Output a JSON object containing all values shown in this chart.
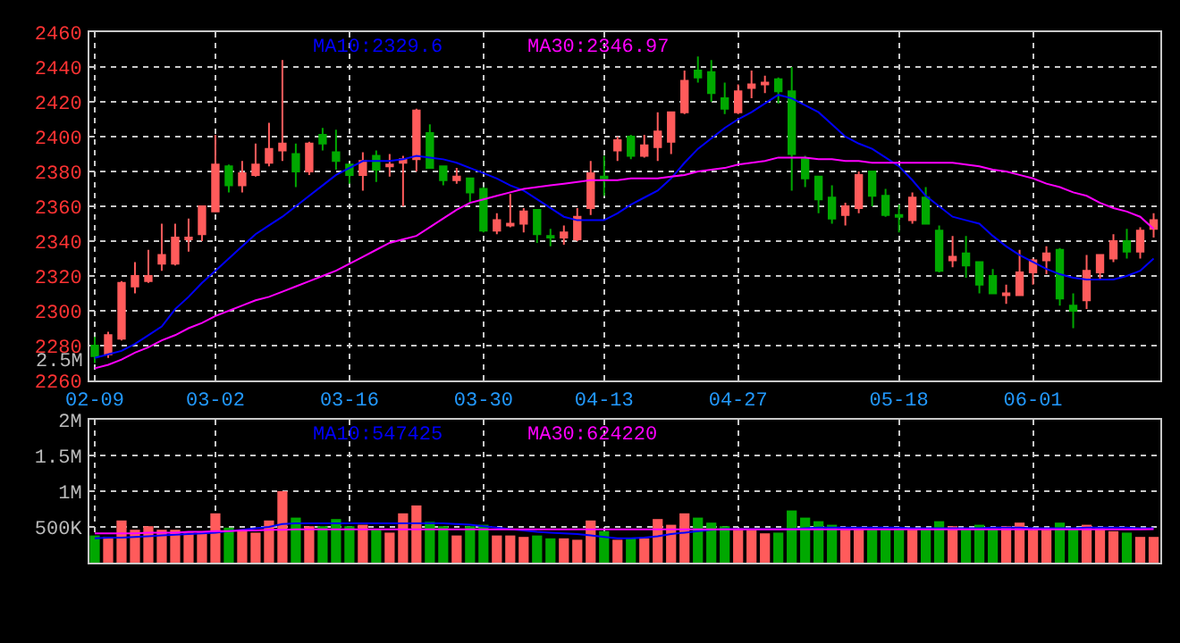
{
  "chart_data": [
    {
      "type": "candlestick",
      "categories": [
        "02-09",
        null,
        null,
        null,
        null,
        null,
        null,
        null,
        null,
        "03-02",
        null,
        null,
        null,
        null,
        null,
        null,
        null,
        null,
        null,
        "03-16",
        null,
        null,
        null,
        null,
        null,
        null,
        null,
        null,
        null,
        "03-30",
        null,
        null,
        null,
        null,
        null,
        null,
        null,
        null,
        "04-13",
        null,
        null,
        null,
        null,
        null,
        null,
        null,
        null,
        null,
        "04-27",
        null,
        null,
        null,
        null,
        null,
        null,
        null,
        null,
        null,
        null,
        null,
        "05-18",
        null,
        null,
        null,
        null,
        null,
        null,
        null,
        null,
        null,
        "06-01",
        null,
        null,
        null,
        null,
        null,
        null,
        null,
        null,
        null
      ],
      "ohlc": [
        [
          2280,
          2285,
          2270,
          2274
        ],
        [
          2275,
          2288,
          2273,
          2286
        ],
        [
          2284,
          2317,
          2283,
          2316
        ],
        [
          2314,
          2328,
          2310,
          2320
        ],
        [
          2317,
          2335,
          2316,
          2320
        ],
        [
          2327,
          2350,
          2323,
          2332
        ],
        [
          2327,
          2350,
          2326,
          2342
        ],
        [
          2341,
          2353,
          2334,
          2342
        ],
        [
          2344,
          2360,
          2340,
          2360
        ],
        [
          2357,
          2401,
          2357,
          2384
        ],
        [
          2383,
          2384,
          2368,
          2372
        ],
        [
          2372,
          2386,
          2368,
          2379
        ],
        [
          2378,
          2396,
          2377,
          2384
        ],
        [
          2385,
          2408,
          2383,
          2393
        ],
        [
          2392,
          2444,
          2386,
          2396
        ],
        [
          2390,
          2396,
          2371,
          2380
        ],
        [
          2380,
          2397,
          2378,
          2396
        ],
        [
          2401,
          2405,
          2392,
          2396
        ],
        [
          2391,
          2404,
          2381,
          2386
        ],
        [
          2384,
          2384,
          2373,
          2378
        ],
        [
          2378,
          2391,
          2369,
          2386
        ],
        [
          2389,
          2392,
          2374,
          2381
        ],
        [
          2383,
          2390,
          2377,
          2384
        ],
        [
          2385,
          2389,
          2360,
          2387
        ],
        [
          2387,
          2416,
          2380,
          2415
        ],
        [
          2402,
          2407,
          2382,
          2382
        ],
        [
          2383,
          2383,
          2372,
          2375
        ],
        [
          2375,
          2382,
          2373,
          2377
        ],
        [
          2376,
          2376,
          2362,
          2368
        ],
        [
          2370,
          2371,
          2345,
          2346
        ],
        [
          2346,
          2356,
          2344,
          2352
        ],
        [
          2349,
          2367,
          2348,
          2350
        ],
        [
          2350,
          2359,
          2345,
          2357
        ],
        [
          2358,
          2358,
          2339,
          2344
        ],
        [
          2343,
          2347,
          2337,
          2342
        ],
        [
          2342,
          2349,
          2338,
          2345
        ],
        [
          2341,
          2359,
          2340,
          2354
        ],
        [
          2359,
          2386,
          2355,
          2379
        ],
        [
          2377,
          2389,
          2366,
          2376
        ],
        [
          2392,
          2400,
          2386,
          2398
        ],
        [
          2400,
          2401,
          2387,
          2389
        ],
        [
          2389,
          2401,
          2388,
          2395
        ],
        [
          2394,
          2414,
          2386,
          2403
        ],
        [
          2397,
          2414,
          2390,
          2414
        ],
        [
          2414,
          2438,
          2413,
          2432
        ],
        [
          2438,
          2446,
          2431,
          2434
        ],
        [
          2437,
          2444,
          2420,
          2425
        ],
        [
          2422,
          2431,
          2413,
          2416
        ],
        [
          2414,
          2430,
          2413,
          2426
        ],
        [
          2428,
          2438,
          2422,
          2430
        ],
        [
          2430,
          2435,
          2425,
          2431
        ],
        [
          2433,
          2434,
          2419,
          2426
        ],
        [
          2426,
          2440,
          2369,
          2390
        ],
        [
          2387,
          2389,
          2371,
          2376
        ],
        [
          2377,
          2377,
          2356,
          2364
        ],
        [
          2365,
          2372,
          2350,
          2353
        ],
        [
          2355,
          2362,
          2349,
          2360
        ],
        [
          2359,
          2380,
          2356,
          2378
        ],
        [
          2380,
          2380,
          2360,
          2366
        ],
        [
          2366,
          2370,
          2354,
          2355
        ],
        [
          2355,
          2361,
          2345,
          2354
        ],
        [
          2352,
          2368,
          2350,
          2365
        ],
        [
          2365,
          2371,
          2350,
          2350
        ],
        [
          2346,
          2349,
          2322,
          2323
        ],
        [
          2329,
          2343,
          2325,
          2331
        ],
        [
          2333,
          2343,
          2319,
          2326
        ],
        [
          2328,
          2328,
          2310,
          2315
        ],
        [
          2320,
          2324,
          2310,
          2310
        ],
        [
          2309,
          2315,
          2304,
          2310
        ],
        [
          2309,
          2335,
          2309,
          2322
        ],
        [
          2322,
          2330,
          2315,
          2329
        ],
        [
          2329,
          2337,
          2321,
          2333
        ],
        [
          2335,
          2336,
          2303,
          2307
        ],
        [
          2303,
          2310,
          2290,
          2300
        ],
        [
          2306,
          2332,
          2301,
          2323
        ],
        [
          2322,
          2332,
          2318,
          2332
        ],
        [
          2330,
          2344,
          2328,
          2340
        ],
        [
          2340,
          2347,
          2330,
          2334
        ],
        [
          2334,
          2348,
          2330,
          2346
        ],
        [
          2347,
          2356,
          2342,
          2352
        ]
      ],
      "colors": [
        "#00a800",
        "#ff5b5b",
        "#ff5b5b",
        "#ff5b5b",
        "#ff5b5b",
        "#ff5b5b",
        "#ff5b5b",
        "#ff5b5b",
        "#ff5b5b",
        "#ff5b5b",
        "#00a800",
        "#ff5b5b",
        "#ff5b5b",
        "#ff5b5b",
        "#ff5b5b",
        "#00a800",
        "#ff5b5b",
        "#00a800",
        "#00a800",
        "#00a800",
        "#ff5b5b",
        "#00a800",
        "#ff5b5b",
        "#ff5b5b",
        "#ff5b5b",
        "#00a800",
        "#00a800",
        "#ff5b5b",
        "#00a800",
        "#00a800",
        "#ff5b5b",
        "#ff5b5b",
        "#ff5b5b",
        "#00a800",
        "#00a800",
        "#ff5b5b",
        "#ff5b5b",
        "#ff5b5b",
        "#00a800",
        "#ff5b5b",
        "#00a800",
        "#ff5b5b",
        "#ff5b5b",
        "#ff5b5b",
        "#ff5b5b",
        "#00a800",
        "#00a800",
        "#00a800",
        "#ff5b5b",
        "#ff5b5b",
        "#ff5b5b",
        "#00a800",
        "#00a800",
        "#00a800",
        "#00a800",
        "#00a800",
        "#ff5b5b",
        "#ff5b5b",
        "#00a800",
        "#00a800",
        "#00a800",
        "#ff5b5b",
        "#00a800",
        "#00a800",
        "#ff5b5b",
        "#00a800",
        "#00a800",
        "#00a800",
        "#ff5b5b",
        "#ff5b5b",
        "#ff5b5b",
        "#ff5b5b",
        "#00a800",
        "#00a800",
        "#ff5b5b",
        "#ff5b5b",
        "#ff5b5b",
        "#00a800",
        "#ff5b5b",
        "#ff5b5b"
      ],
      "series": [
        {
          "name": "MA10:2329.6",
          "type": "line",
          "color": "#0000ff",
          "values": [
            2273,
            2275,
            2277,
            2281,
            2286,
            2291,
            2301,
            2308,
            2316,
            2323,
            2330,
            2337,
            2344,
            2349,
            2354,
            2360,
            2366,
            2372,
            2378,
            2382,
            2386,
            2386,
            2386,
            2387,
            2389,
            2388,
            2387,
            2385,
            2382,
            2379,
            2376,
            2372,
            2369,
            2364,
            2359,
            2354,
            2352,
            2352,
            2352,
            2356,
            2361,
            2365,
            2369,
            2376,
            2385,
            2393,
            2399,
            2405,
            2410,
            2414,
            2419,
            2424,
            2422,
            2418,
            2414,
            2407,
            2400,
            2396,
            2393,
            2388,
            2383,
            2375,
            2366,
            2360,
            2354,
            2352,
            2350,
            2343,
            2337,
            2332,
            2328,
            2324,
            2321,
            2319,
            2318,
            2318,
            2318,
            2320,
            2323,
            2330
          ]
        },
        {
          "name": "MA30:2346.97",
          "type": "line",
          "color": "#ff00ff",
          "values": [
            2267,
            2269,
            2272,
            2276,
            2279,
            2283,
            2286,
            2290,
            2293,
            2297,
            2300,
            2303,
            2306,
            2308,
            2311,
            2314,
            2317,
            2320,
            2323,
            2327,
            2331,
            2335,
            2339,
            2341,
            2343,
            2348,
            2353,
            2358,
            2362,
            2364,
            2366,
            2368,
            2370,
            2371,
            2372,
            2373,
            2374,
            2375,
            2375,
            2375,
            2376,
            2376,
            2376,
            2377,
            2378,
            2380,
            2381,
            2382,
            2384,
            2385,
            2386,
            2388,
            2388,
            2388,
            2387,
            2387,
            2386,
            2386,
            2385,
            2385,
            2385,
            2385,
            2385,
            2385,
            2385,
            2384,
            2383,
            2381,
            2380,
            2378,
            2376,
            2373,
            2371,
            2368,
            2366,
            2362,
            2359,
            2357,
            2354,
            2347
          ]
        }
      ],
      "ylim": [
        2260,
        2460
      ],
      "yticks": [
        2260,
        2280,
        2300,
        2320,
        2340,
        2360,
        2380,
        2400,
        2420,
        2440,
        2460
      ],
      "grid": true
    },
    {
      "type": "bar",
      "categories": [
        null,
        null,
        null,
        null,
        null,
        null,
        null,
        null,
        null,
        null,
        null,
        null,
        null,
        null,
        null,
        null,
        null,
        null,
        null,
        null,
        null,
        null,
        null,
        null,
        null,
        null,
        null,
        null,
        null,
        null,
        null,
        null,
        null,
        null,
        null,
        null,
        null,
        null,
        null,
        null,
        null,
        null,
        null,
        null,
        null,
        null,
        null,
        null,
        null,
        null,
        null,
        null,
        null,
        null,
        null,
        null,
        null,
        null,
        null,
        null,
        null,
        null,
        null,
        null,
        null,
        null,
        null,
        null,
        null,
        null,
        null,
        null,
        null,
        null,
        null,
        null,
        null,
        null,
        null,
        null
      ],
      "values": [
        380000,
        360000,
        590000,
        460000,
        510000,
        460000,
        460000,
        420000,
        420000,
        690000,
        490000,
        460000,
        420000,
        590000,
        1000000,
        630000,
        510000,
        510000,
        610000,
        510000,
        530000,
        460000,
        420000,
        690000,
        800000,
        570000,
        510000,
        380000,
        510000,
        530000,
        380000,
        380000,
        360000,
        380000,
        340000,
        340000,
        320000,
        590000,
        440000,
        320000,
        340000,
        340000,
        610000,
        530000,
        690000,
        630000,
        560000,
        510000,
        480000,
        460000,
        410000,
        420000,
        730000,
        630000,
        580000,
        530000,
        460000,
        480000,
        460000,
        460000,
        480000,
        460000,
        460000,
        580000,
        510000,
        460000,
        530000,
        480000,
        510000,
        560000,
        460000,
        460000,
        560000,
        480000,
        530000,
        480000,
        440000,
        420000,
        360000,
        360000
      ],
      "colors": [
        "#00a800",
        "#ff5b5b",
        "#ff5b5b",
        "#ff5b5b",
        "#ff5b5b",
        "#ff5b5b",
        "#ff5b5b",
        "#ff5b5b",
        "#ff5b5b",
        "#ff5b5b",
        "#00a800",
        "#ff5b5b",
        "#ff5b5b",
        "#ff5b5b",
        "#ff5b5b",
        "#00a800",
        "#ff5b5b",
        "#00a800",
        "#00a800",
        "#00a800",
        "#ff5b5b",
        "#00a800",
        "#ff5b5b",
        "#ff5b5b",
        "#ff5b5b",
        "#00a800",
        "#00a800",
        "#ff5b5b",
        "#00a800",
        "#00a800",
        "#ff5b5b",
        "#ff5b5b",
        "#ff5b5b",
        "#00a800",
        "#00a800",
        "#ff5b5b",
        "#ff5b5b",
        "#ff5b5b",
        "#00a800",
        "#ff5b5b",
        "#00a800",
        "#ff5b5b",
        "#ff5b5b",
        "#ff5b5b",
        "#ff5b5b",
        "#00a800",
        "#00a800",
        "#00a800",
        "#ff5b5b",
        "#ff5b5b",
        "#ff5b5b",
        "#00a800",
        "#00a800",
        "#00a800",
        "#00a800",
        "#00a800",
        "#ff5b5b",
        "#ff5b5b",
        "#00a800",
        "#00a800",
        "#00a800",
        "#ff5b5b",
        "#00a800",
        "#00a800",
        "#ff5b5b",
        "#00a800",
        "#00a800",
        "#00a800",
        "#ff5b5b",
        "#ff5b5b",
        "#ff5b5b",
        "#ff5b5b",
        "#00a800",
        "#00a800",
        "#ff5b5b",
        "#ff5b5b",
        "#ff5b5b",
        "#00a800",
        "#ff5b5b",
        "#ff5b5b"
      ],
      "series": [
        {
          "name": "MA10:547425",
          "type": "line",
          "color": "#0000ff",
          "values": [
            340000,
            350000,
            350000,
            360000,
            370000,
            380000,
            390000,
            400000,
            410000,
            420000,
            440000,
            460000,
            480000,
            500000,
            540000,
            550000,
            550000,
            550000,
            550000,
            550000,
            550000,
            550000,
            550000,
            550000,
            550000,
            550000,
            550000,
            540000,
            530000,
            510000,
            490000,
            470000,
            450000,
            430000,
            420000,
            410000,
            400000,
            380000,
            360000,
            340000,
            340000,
            350000,
            370000,
            400000,
            420000,
            440000,
            460000,
            470000,
            470000,
            470000,
            470000,
            470000,
            470000,
            480000,
            490000,
            490000,
            490000,
            490000,
            490000,
            490000,
            490000,
            480000,
            480000,
            480000,
            480000,
            480000,
            480000,
            490000,
            490000,
            490000,
            480000,
            480000,
            480000,
            480000,
            490000,
            490000,
            490000,
            490000,
            480000,
            480000
          ]
        },
        {
          "name": "MA30:624220",
          "type": "line",
          "color": "#ff00ff",
          "values": [
            410000,
            410000,
            410000,
            410000,
            420000,
            420000,
            420000,
            430000,
            430000,
            440000,
            440000,
            450000,
            450000,
            460000,
            460000,
            465000,
            465000,
            465000,
            465000,
            465000,
            465000,
            465000,
            465000,
            465000,
            465000,
            465000,
            465000,
            465000,
            465000,
            465000,
            465000,
            465000,
            465000,
            465000,
            465000,
            465000,
            465000,
            465000,
            465000,
            465000,
            465000,
            465000,
            465000,
            465000,
            465000,
            465000,
            465000,
            465000,
            465000,
            465000,
            465000,
            465000,
            465000,
            465000,
            465000,
            465000,
            465000,
            465000,
            465000,
            465000,
            465000,
            465000,
            465000,
            465000,
            465000,
            465000,
            465000,
            465000,
            465000,
            465000,
            465000,
            465000,
            465000,
            465000,
            465000,
            465000,
            465000,
            465000,
            465000,
            470000
          ]
        }
      ],
      "ylim": [
        0,
        2000000
      ],
      "yticks": [
        {
          "value": 500000,
          "label": "500K"
        },
        {
          "value": 1000000,
          "label": "1M"
        },
        {
          "value": 1500000,
          "label": "1.5M"
        },
        {
          "value": 2000000,
          "label": "2M"
        }
      ],
      "annotations": [
        "2.5M"
      ],
      "tick_labels": "y",
      "grid": true
    }
  ]
}
